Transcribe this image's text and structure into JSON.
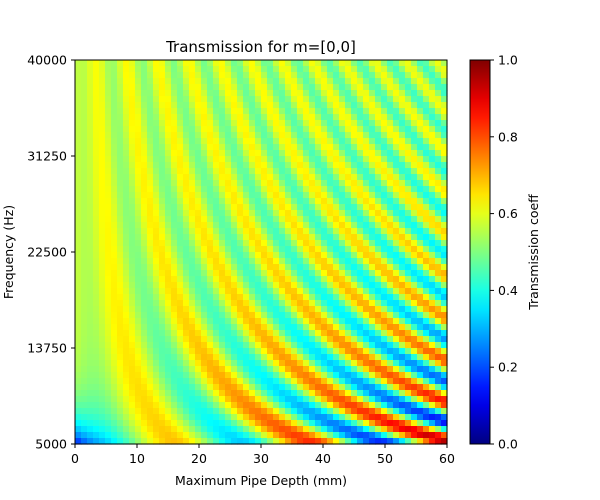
{
  "chart_data": {
    "type": "heatmap",
    "title": "Transmission for m=[0,0]",
    "xlabel": "Maximum Pipe Depth (mm)",
    "ylabel": "Frequency (Hz)",
    "xlim": [
      0,
      60
    ],
    "ylim": [
      5000,
      40000
    ],
    "x_ticks": [
      "0",
      "10",
      "20",
      "30",
      "40",
      "50",
      "60"
    ],
    "x_tick_values": [
      0,
      10,
      20,
      30,
      40,
      50,
      60
    ],
    "y_ticks": [
      "5000",
      "13750",
      "22500",
      "31250",
      "40000"
    ],
    "y_tick_values": [
      5000,
      13750,
      22500,
      31250,
      40000
    ],
    "colorbar": {
      "label": "Transmission coeff",
      "min": 0.0,
      "max": 1.0,
      "ticks": [
        "0.0",
        "0.2",
        "0.4",
        "0.6",
        "0.8",
        "1.0"
      ],
      "tick_values": [
        0.0,
        0.2,
        0.4,
        0.6,
        0.8,
        1.0
      ],
      "colormap": "jet"
    },
    "grid": false,
    "legend": "none"
  }
}
